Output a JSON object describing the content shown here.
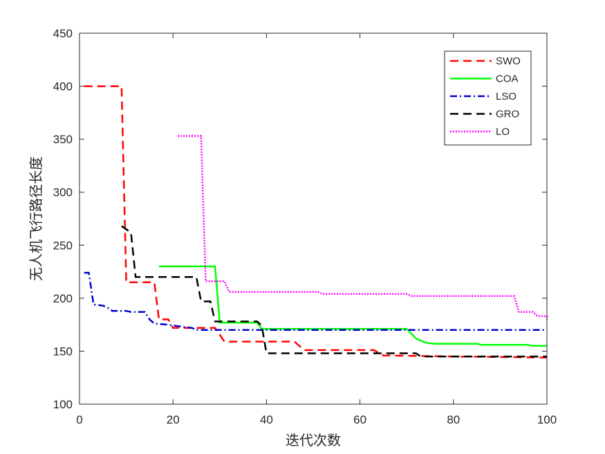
{
  "chart_data": {
    "type": "line",
    "title": "",
    "xlabel": "迭代次数",
    "ylabel": "无人机飞行路径长度",
    "xlim": [
      0,
      100
    ],
    "ylim": [
      100,
      450
    ],
    "xticks": [
      0,
      20,
      40,
      60,
      80,
      100
    ],
    "yticks": [
      100,
      150,
      200,
      250,
      300,
      350,
      400,
      450
    ],
    "grid": false,
    "legend_position": "top-right",
    "series": [
      {
        "name": "SWO",
        "color": "#ff0000",
        "style": "dashed",
        "points": [
          [
            1,
            400
          ],
          [
            9,
            400
          ],
          [
            10,
            215
          ],
          [
            16,
            215
          ],
          [
            17,
            180
          ],
          [
            19,
            180
          ],
          [
            20,
            172
          ],
          [
            29,
            172
          ],
          [
            31,
            159
          ],
          [
            40,
            159
          ],
          [
            46,
            159
          ],
          [
            48,
            151
          ],
          [
            63,
            151
          ],
          [
            65,
            146
          ],
          [
            80,
            145
          ],
          [
            100,
            144
          ]
        ]
      },
      {
        "name": "COA",
        "color": "#00ff00",
        "style": "solid",
        "points": [
          [
            17,
            230
          ],
          [
            29,
            230
          ],
          [
            30,
            177
          ],
          [
            38,
            177
          ],
          [
            39,
            171
          ],
          [
            70,
            171
          ],
          [
            72,
            162
          ],
          [
            74,
            158
          ],
          [
            76,
            157
          ],
          [
            85,
            157
          ],
          [
            86,
            156
          ],
          [
            96,
            156
          ],
          [
            97,
            155
          ],
          [
            100,
            155
          ]
        ]
      },
      {
        "name": "LSO",
        "color": "#0000cc",
        "style": "dashdot",
        "points": [
          [
            1,
            224
          ],
          [
            2,
            224
          ],
          [
            3,
            194
          ],
          [
            5,
            193
          ],
          [
            6,
            191
          ],
          [
            7,
            188
          ],
          [
            10,
            188
          ],
          [
            11,
            187
          ],
          [
            14,
            187
          ],
          [
            15,
            180
          ],
          [
            16,
            176
          ],
          [
            19,
            175
          ],
          [
            22,
            173
          ],
          [
            24,
            172
          ],
          [
            25,
            170
          ],
          [
            100,
            170
          ]
        ]
      },
      {
        "name": "GRO",
        "color": "#000000",
        "style": "dashed",
        "points": [
          [
            9,
            268
          ],
          [
            11,
            262
          ],
          [
            12,
            220
          ],
          [
            25,
            220
          ],
          [
            26,
            197
          ],
          [
            28,
            197
          ],
          [
            29,
            178
          ],
          [
            38,
            178
          ],
          [
            39,
            174
          ],
          [
            40,
            148
          ],
          [
            72,
            148
          ],
          [
            73,
            145
          ],
          [
            100,
            145
          ]
        ]
      },
      {
        "name": "LO",
        "color": "#ff00ff",
        "style": "dotted",
        "points": [
          [
            21,
            353
          ],
          [
            26,
            353
          ],
          [
            27,
            216
          ],
          [
            31,
            216
          ],
          [
            32,
            206
          ],
          [
            51,
            206
          ],
          [
            52,
            204
          ],
          [
            70,
            204
          ],
          [
            71,
            202
          ],
          [
            93,
            202
          ],
          [
            94,
            187
          ],
          [
            97,
            187
          ],
          [
            98,
            183
          ],
          [
            100,
            183
          ],
          [
            100,
            180
          ]
        ]
      }
    ]
  }
}
